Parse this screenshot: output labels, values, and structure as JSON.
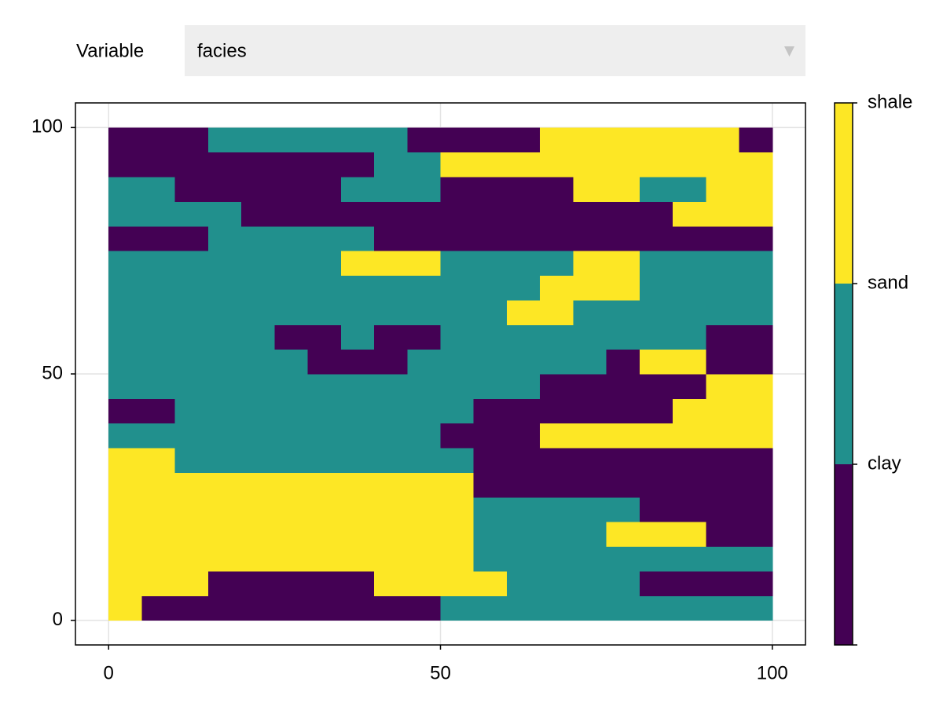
{
  "menu": {
    "label": "Variable",
    "selected": "facies"
  },
  "chart_data": {
    "type": "heatmap",
    "xlim": [
      -5,
      105
    ],
    "ylim": [
      -5,
      105
    ],
    "xticks": [
      0,
      50,
      100
    ],
    "yticks": [
      0,
      50,
      100
    ],
    "grid": true,
    "x_edges": [
      0,
      5,
      10,
      15,
      20,
      25,
      30,
      35,
      40,
      45,
      50,
      55,
      60,
      65,
      70,
      75,
      80,
      85,
      90,
      95,
      100
    ],
    "y_edges": [
      0,
      5,
      10,
      15,
      20,
      25,
      30,
      35,
      40,
      45,
      50,
      55,
      60,
      65,
      70,
      75,
      80,
      85,
      90,
      95,
      100
    ],
    "colors": [
      "#440154",
      "#21908d",
      "#fde725"
    ],
    "zlim": [
      0,
      3
    ],
    "zticks": [
      {
        "value": 1,
        "label": "clay"
      },
      {
        "value": 2,
        "label": "sand"
      },
      {
        "value": 3,
        "label": "shale"
      }
    ],
    "z": [
      [
        2,
        0,
        0,
        0,
        0,
        0,
        0,
        0,
        0,
        0,
        1,
        1,
        1,
        1,
        1,
        1,
        1,
        1,
        1,
        1
      ],
      [
        2,
        2,
        2,
        0,
        0,
        0,
        0,
        0,
        2,
        2,
        2,
        2,
        1,
        1,
        1,
        1,
        0,
        0,
        0,
        0
      ],
      [
        2,
        2,
        2,
        2,
        2,
        2,
        2,
        2,
        2,
        2,
        2,
        1,
        1,
        1,
        1,
        1,
        1,
        1,
        1,
        1
      ],
      [
        2,
        2,
        2,
        2,
        2,
        2,
        2,
        2,
        2,
        2,
        2,
        1,
        1,
        1,
        1,
        2,
        2,
        2,
        0,
        0
      ],
      [
        2,
        2,
        2,
        2,
        2,
        2,
        2,
        2,
        2,
        2,
        2,
        1,
        1,
        1,
        1,
        1,
        0,
        0,
        0,
        0
      ],
      [
        2,
        2,
        2,
        2,
        2,
        2,
        2,
        2,
        2,
        2,
        2,
        0,
        0,
        0,
        0,
        0,
        0,
        0,
        0,
        0
      ],
      [
        2,
        2,
        1,
        1,
        1,
        1,
        1,
        1,
        1,
        1,
        1,
        0,
        0,
        0,
        0,
        0,
        0,
        0,
        0,
        0
      ],
      [
        1,
        1,
        1,
        1,
        1,
        1,
        1,
        1,
        1,
        1,
        0,
        0,
        0,
        2,
        2,
        2,
        2,
        2,
        2,
        2
      ],
      [
        0,
        0,
        1,
        1,
        1,
        1,
        1,
        1,
        1,
        1,
        1,
        0,
        0,
        0,
        0,
        0,
        0,
        2,
        2,
        2
      ],
      [
        1,
        1,
        1,
        1,
        1,
        1,
        1,
        1,
        1,
        1,
        1,
        1,
        1,
        0,
        0,
        0,
        0,
        0,
        2,
        2
      ],
      [
        1,
        1,
        1,
        1,
        1,
        1,
        0,
        0,
        0,
        1,
        1,
        1,
        1,
        1,
        1,
        0,
        2,
        2,
        0,
        0
      ],
      [
        1,
        1,
        1,
        1,
        1,
        0,
        0,
        1,
        0,
        0,
        1,
        1,
        1,
        1,
        1,
        1,
        1,
        1,
        0,
        0
      ],
      [
        1,
        1,
        1,
        1,
        1,
        1,
        1,
        1,
        1,
        1,
        1,
        1,
        2,
        2,
        1,
        1,
        1,
        1,
        1,
        1
      ],
      [
        1,
        1,
        1,
        1,
        1,
        1,
        1,
        1,
        1,
        1,
        1,
        1,
        1,
        2,
        2,
        2,
        1,
        1,
        1,
        1
      ],
      [
        1,
        1,
        1,
        1,
        1,
        1,
        1,
        2,
        2,
        2,
        1,
        1,
        1,
        1,
        2,
        2,
        1,
        1,
        1,
        1
      ],
      [
        0,
        0,
        0,
        1,
        1,
        1,
        1,
        1,
        0,
        0,
        0,
        0,
        0,
        0,
        0,
        0,
        0,
        0,
        0,
        0
      ],
      [
        1,
        1,
        1,
        1,
        0,
        0,
        0,
        0,
        0,
        0,
        0,
        0,
        0,
        0,
        0,
        0,
        0,
        2,
        2,
        2
      ],
      [
        1,
        1,
        0,
        0,
        0,
        0,
        0,
        1,
        1,
        1,
        0,
        0,
        0,
        0,
        2,
        2,
        1,
        1,
        2,
        2
      ],
      [
        0,
        0,
        0,
        0,
        0,
        0,
        0,
        0,
        1,
        1,
        2,
        2,
        2,
        2,
        2,
        2,
        2,
        2,
        2,
        2
      ],
      [
        0,
        0,
        0,
        1,
        1,
        1,
        1,
        1,
        1,
        0,
        0,
        0,
        0,
        2,
        2,
        2,
        2,
        2,
        2,
        0
      ]
    ]
  }
}
